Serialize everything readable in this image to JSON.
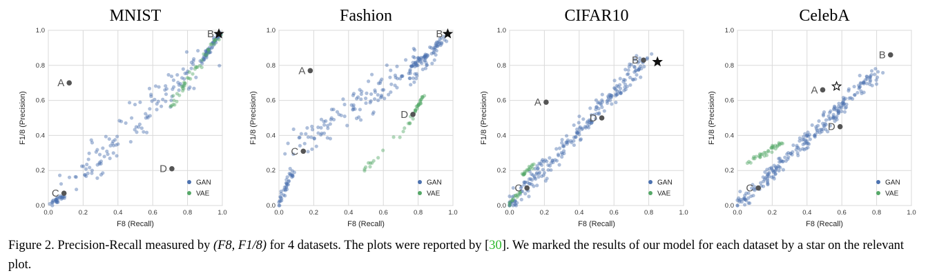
{
  "chart_data": [
    {
      "type": "scatter",
      "title": "MNIST",
      "xlabel": "F8 (Recall)",
      "ylabel": "F1/8 (Precision)",
      "xlim": [
        0,
        1.0
      ],
      "ylim": [
        0,
        1.0
      ],
      "xticks": [
        "0.0",
        "0.2",
        "0.4",
        "0.6",
        "0.8",
        "1.0"
      ],
      "yticks": [
        "0.0",
        "0.2",
        "0.4",
        "0.6",
        "0.8",
        "1.0"
      ],
      "grid": true,
      "legend": {
        "position": "bottom-right",
        "entries": [
          "GAN",
          "VAE"
        ]
      },
      "series": [
        {
          "name": "GAN",
          "color": "#4c72b0",
          "clusters": [
            {
              "x": [
                0.88,
                0.99
              ],
              "y": [
                0.82,
                0.99
              ],
              "n": 60,
              "jitter": 0.02
            },
            {
              "x": [
                0.05,
                0.9
              ],
              "y": [
                0.05,
                0.85
              ],
              "n": 120,
              "jitter": 0.14
            },
            {
              "x": [
                0.0,
                0.1
              ],
              "y": [
                0.0,
                0.06
              ],
              "n": 30,
              "jitter": 0.02
            }
          ]
        },
        {
          "name": "VAE",
          "color": "#55a868",
          "clusters": [
            {
              "x": [
                0.7,
                0.98
              ],
              "y": [
                0.56,
                0.97
              ],
              "n": 45,
              "jitter": 0.025
            }
          ]
        }
      ],
      "annotations": [
        {
          "label": "A",
          "x": 0.12,
          "y": 0.7
        },
        {
          "label": "B",
          "x": 0.98,
          "y": 0.98,
          "star": true
        },
        {
          "label": "C",
          "x": 0.09,
          "y": 0.07
        },
        {
          "label": "D",
          "x": 0.71,
          "y": 0.21
        }
      ]
    },
    {
      "type": "scatter",
      "title": "Fashion",
      "xlabel": "F8 (Recall)",
      "ylabel": "F1/8 (Precision)",
      "xlim": [
        0,
        1.0
      ],
      "ylim": [
        0,
        1.0
      ],
      "xticks": [
        "0.0",
        "0.2",
        "0.4",
        "0.6",
        "0.8",
        "1.0"
      ],
      "yticks": [
        "0.0",
        "0.2",
        "0.4",
        "0.6",
        "0.8",
        "1.0"
      ],
      "grid": true,
      "legend": {
        "position": "bottom-right",
        "entries": [
          "GAN",
          "VAE"
        ]
      },
      "series": [
        {
          "name": "GAN",
          "color": "#4c72b0",
          "clusters": [
            {
              "x": [
                0.75,
                0.95
              ],
              "y": [
                0.78,
                0.95
              ],
              "n": 60,
              "jitter": 0.03
            },
            {
              "x": [
                0.05,
                0.85
              ],
              "y": [
                0.3,
                0.85
              ],
              "n": 140,
              "jitter": 0.12
            },
            {
              "x": [
                0.0,
                0.08
              ],
              "y": [
                0.0,
                0.2
              ],
              "n": 40,
              "jitter": 0.03
            }
          ]
        },
        {
          "name": "VAE",
          "color": "#55a868",
          "clusters": [
            {
              "x": [
                0.76,
                0.83
              ],
              "y": [
                0.5,
                0.63
              ],
              "n": 25,
              "jitter": 0.015
            },
            {
              "x": [
                0.48,
                0.78
              ],
              "y": [
                0.19,
                0.5
              ],
              "n": 18,
              "jitter": 0.02
            }
          ]
        }
      ],
      "annotations": [
        {
          "label": "A",
          "x": 0.18,
          "y": 0.77
        },
        {
          "label": "B",
          "x": 0.97,
          "y": 0.98,
          "star": true
        },
        {
          "label": "C",
          "x": 0.14,
          "y": 0.31
        },
        {
          "label": "D",
          "x": 0.77,
          "y": 0.52
        }
      ]
    },
    {
      "type": "scatter",
      "title": "CIFAR10",
      "xlabel": "F8 (Recall)",
      "ylabel": "F1/8 (Precision)",
      "xlim": [
        0,
        1.0
      ],
      "ylim": [
        0,
        1.0
      ],
      "xticks": [
        "0.0",
        "0.2",
        "0.4",
        "0.6",
        "0.8",
        "1.0"
      ],
      "yticks": [
        "0.0",
        "0.2",
        "0.4",
        "0.6",
        "0.8",
        "1.0"
      ],
      "grid": true,
      "legend": {
        "position": "bottom-right",
        "entries": [
          "GAN",
          "VAE"
        ]
      },
      "series": [
        {
          "name": "GAN",
          "color": "#4c72b0",
          "clusters": [
            {
              "x": [
                0.0,
                0.78
              ],
              "y": [
                0.0,
                0.84
              ],
              "n": 240,
              "jitter": 0.07
            }
          ]
        },
        {
          "name": "VAE",
          "color": "#55a868",
          "clusters": [
            {
              "x": [
                0.07,
                0.14
              ],
              "y": [
                0.17,
                0.24
              ],
              "n": 18,
              "jitter": 0.015
            },
            {
              "x": [
                0.0,
                0.06
              ],
              "y": [
                0.0,
                0.08
              ],
              "n": 15,
              "jitter": 0.015
            }
          ]
        }
      ],
      "annotations": [
        {
          "label": "A",
          "x": 0.21,
          "y": 0.59
        },
        {
          "label": "B",
          "x": 0.77,
          "y": 0.83
        },
        {
          "label": "C",
          "x": 0.1,
          "y": 0.1
        },
        {
          "label": "D",
          "x": 0.53,
          "y": 0.5
        },
        {
          "label": "",
          "x": 0.85,
          "y": 0.82,
          "star": true
        }
      ]
    },
    {
      "type": "scatter",
      "title": "CelebA",
      "xlabel": "F8 (Recall)",
      "ylabel": "F1/8 (Precision)",
      "xlim": [
        0,
        1.0
      ],
      "ylim": [
        0,
        1.0
      ],
      "xticks": [
        "0.0",
        "0.2",
        "0.4",
        "0.6",
        "0.8",
        "1.0"
      ],
      "yticks": [
        "0.0",
        "0.2",
        "0.4",
        "0.6",
        "0.8",
        "1.0"
      ],
      "grid": true,
      "legend": {
        "position": "bottom-right",
        "entries": [
          "GAN",
          "VAE"
        ]
      },
      "series": [
        {
          "name": "GAN",
          "color": "#4c72b0",
          "clusters": [
            {
              "x": [
                0.0,
                0.8
              ],
              "y": [
                0.0,
                0.76
              ],
              "n": 240,
              "jitter": 0.06
            }
          ]
        },
        {
          "name": "VAE",
          "color": "#55a868",
          "clusters": [
            {
              "x": [
                0.06,
                0.26
              ],
              "y": [
                0.24,
                0.36
              ],
              "n": 35,
              "jitter": 0.02
            }
          ]
        }
      ],
      "annotations": [
        {
          "label": "A",
          "x": 0.49,
          "y": 0.66
        },
        {
          "label": "B",
          "x": 0.88,
          "y": 0.86
        },
        {
          "label": "C",
          "x": 0.12,
          "y": 0.1
        },
        {
          "label": "D",
          "x": 0.59,
          "y": 0.45
        },
        {
          "label": "",
          "x": 0.57,
          "y": 0.68,
          "star": true,
          "hollow": true
        }
      ]
    }
  ],
  "caption": {
    "prefix": "Figure 2. Precision-Recall measured by ",
    "math": "(F8, F1/8)",
    "middle": " for 4 datasets. The plots were reported by [",
    "cite": "30",
    "suffix": "]. We marked the results of our model for each dataset by a star on the relevant plot."
  }
}
